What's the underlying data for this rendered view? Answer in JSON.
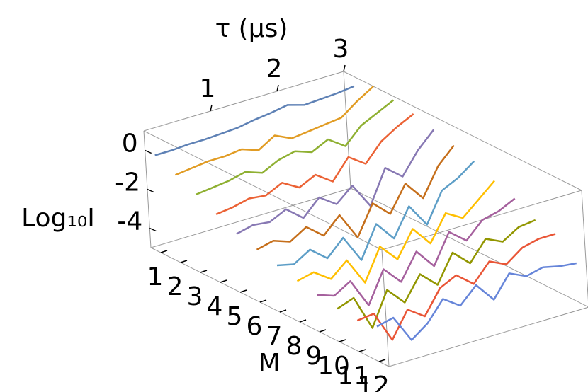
{
  "chart_data": {
    "type": "line3d",
    "xlabel": "τ (μs)",
    "ylabel": "M",
    "zlabel": "Log₁₀I",
    "xlim": [
      0,
      3
    ],
    "xticks": [
      1,
      2,
      3
    ],
    "ylim": [
      0.5,
      12.5
    ],
    "yticks": [
      1,
      2,
      3,
      4,
      5,
      6,
      7,
      8,
      9,
      10,
      11,
      12
    ],
    "zlim": [
      -5,
      1
    ],
    "zticks": [
      -4,
      -2,
      0
    ],
    "x": [
      0,
      0.25,
      0.5,
      0.75,
      1,
      1.25,
      1.5,
      1.75,
      2,
      2.25,
      2.5,
      2.75,
      3
    ],
    "series": [
      {
        "m": 1,
        "color": "#5e81b5",
        "values": [
          0,
          0,
          0.05,
          0.05,
          0.1,
          0.15,
          0.3,
          0.4,
          0.55,
          0.3,
          0.35,
          0.4,
          0.5
        ]
      },
      {
        "m": 2,
        "color": "#e19c24",
        "values": [
          -0.5,
          -0.4,
          -0.3,
          -0.3,
          -0.2,
          -0.5,
          0,
          -0.4,
          -0.3,
          -0.2,
          -0.1,
          0.5,
          1.0
        ]
      },
      {
        "m": 3,
        "color": "#8fb032",
        "values": [
          -1,
          -0.9,
          -0.8,
          -0.6,
          -0.9,
          -0.5,
          -0.3,
          -0.6,
          -0.2,
          -0.8,
          0,
          0.4,
          0.8
        ]
      },
      {
        "m": 4,
        "color": "#eb6235",
        "values": [
          -1.5,
          -1.4,
          -1.2,
          -1.3,
          -0.9,
          -1.4,
          -1.0,
          -1.6,
          -0.6,
          -1.2,
          -0.3,
          0.2,
          0.6
        ]
      },
      {
        "m": 5,
        "color": "#8778b3",
        "values": [
          -2,
          -1.8,
          -1.9,
          -1.5,
          -2.2,
          -1.4,
          -2.0,
          -1.3,
          -2.6,
          -0.9,
          -1.6,
          -0.5,
          0.3
        ]
      },
      {
        "m": 6,
        "color": "#c56e1a",
        "values": [
          -2.3,
          -2.1,
          -2.4,
          -1.9,
          -2.6,
          -1.8,
          -3.2,
          -1.7,
          -2.5,
          -1.2,
          -2.2,
          -0.8,
          0
        ]
      },
      {
        "m": 7,
        "color": "#5d9ec7",
        "values": [
          -2.6,
          -2.8,
          -2.3,
          -3.0,
          -2.2,
          -3.6,
          -2.0,
          -3.0,
          -1.6,
          -2.8,
          -1.3,
          -0.9,
          -0.3
        ]
      },
      {
        "m": 8,
        "color": "#ffbf00",
        "values": [
          -2.9,
          -2.7,
          -3.3,
          -2.6,
          -4.0,
          -2.4,
          -3.3,
          -2.0,
          -3.0,
          -1.7,
          -2.2,
          -1.5,
          -0.8
        ]
      },
      {
        "m": 9,
        "color": "#a5609d",
        "values": [
          -3.1,
          -3.4,
          -2.9,
          -4.4,
          -2.8,
          -3.7,
          -2.4,
          -3.4,
          -1.9,
          -2.6,
          -1.8,
          -1.6,
          -1.2
        ]
      },
      {
        "m": 10,
        "color": "#929600",
        "values": [
          -3.3,
          -3.0,
          -4.8,
          -3.1,
          -4.0,
          -2.8,
          -3.6,
          -2.2,
          -3.0,
          -2.0,
          -2.4,
          -1.9,
          -1.8
        ]
      },
      {
        "m": 11,
        "color": "#e95536",
        "values": [
          -3.4,
          -3.3,
          -4.9,
          -3.6,
          -4.2,
          -3.0,
          -2.6,
          -3.3,
          -2.4,
          -2.8,
          -2.2,
          -2.0,
          -2.0
        ]
      },
      {
        "m": 12,
        "color": "#6685d9",
        "values": [
          -3.2,
          -3.0,
          -4.4,
          -3.8,
          -2.8,
          -3.4,
          -2.6,
          -3.6,
          -2.5,
          -2.9,
          -2.7,
          -2.9,
          -3.0
        ]
      }
    ]
  }
}
